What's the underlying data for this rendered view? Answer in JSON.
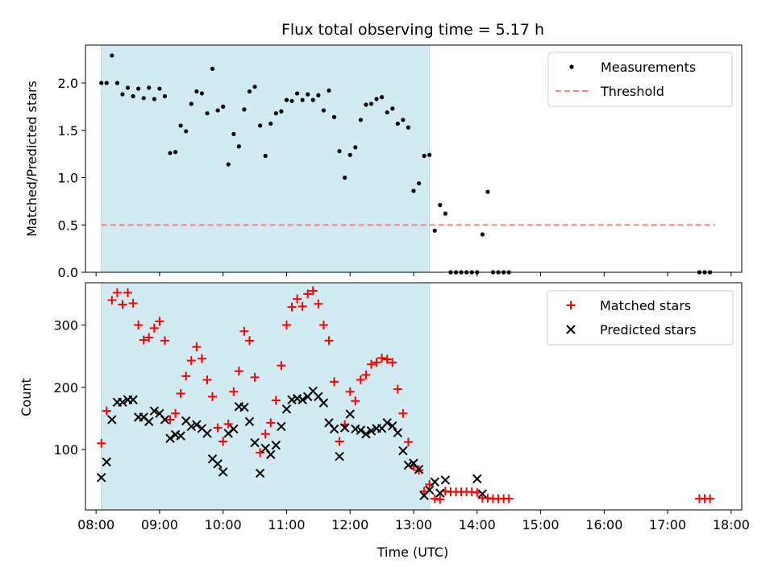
{
  "title": "Flux total observing time = 5.17 h",
  "colors": {
    "observing_span": "#add8e6",
    "measurements": "#000000",
    "threshold": "#ff7f7f",
    "matched": "#ff0000",
    "predicted": "#000000"
  },
  "chart_data": [
    {
      "type": "scatter",
      "panel": "top",
      "xlabel": "",
      "ylabel": "Matched/Predicted stars",
      "xlim": [
        "07:50",
        "18:10"
      ],
      "ylim": [
        0,
        2.4
      ],
      "yticks": [
        0.0,
        0.5,
        1.0,
        1.5,
        2.0
      ],
      "ytick_labels": [
        "0.0",
        "0.5",
        "1.0",
        "1.5",
        "2.0"
      ],
      "shaded_span": [
        "08:05",
        "13:15"
      ],
      "legend": {
        "placement": "top-right",
        "entries": [
          "Measurements",
          "Threshold"
        ]
      },
      "series": [
        {
          "name": "Measurements",
          "marker": "dot",
          "points": [
            [
              "08:05",
              2.0
            ],
            [
              "08:10",
              2.0
            ],
            [
              "08:15",
              2.29
            ],
            [
              "08:20",
              2.0
            ],
            [
              "08:25",
              1.88
            ],
            [
              "08:30",
              1.95
            ],
            [
              "08:35",
              1.86
            ],
            [
              "08:40",
              1.94
            ],
            [
              "08:45",
              1.84
            ],
            [
              "08:50",
              1.95
            ],
            [
              "08:55",
              1.83
            ],
            [
              "09:00",
              1.94
            ],
            [
              "09:05",
              1.86
            ],
            [
              "09:10",
              1.26
            ],
            [
              "09:15",
              1.27
            ],
            [
              "09:20",
              1.55
            ],
            [
              "09:25",
              1.49
            ],
            [
              "09:30",
              1.78
            ],
            [
              "09:35",
              1.91
            ],
            [
              "09:40",
              1.89
            ],
            [
              "09:45",
              1.68
            ],
            [
              "09:50",
              2.15
            ],
            [
              "09:55",
              1.71
            ],
            [
              "10:00",
              1.75
            ],
            [
              "10:05",
              1.14
            ],
            [
              "10:10",
              1.46
            ],
            [
              "10:15",
              1.33
            ],
            [
              "10:20",
              1.72
            ],
            [
              "10:25",
              1.91
            ],
            [
              "10:30",
              1.96
            ],
            [
              "10:35",
              1.55
            ],
            [
              "10:40",
              1.23
            ],
            [
              "10:45",
              1.57
            ],
            [
              "10:50",
              1.68
            ],
            [
              "10:55",
              1.7
            ],
            [
              "11:00",
              1.82
            ],
            [
              "11:05",
              1.81
            ],
            [
              "11:10",
              1.89
            ],
            [
              "11:15",
              1.82
            ],
            [
              "11:20",
              1.88
            ],
            [
              "11:25",
              1.82
            ],
            [
              "11:30",
              1.87
            ],
            [
              "11:35",
              1.71
            ],
            [
              "11:40",
              1.92
            ],
            [
              "11:45",
              1.64
            ],
            [
              "11:50",
              1.28
            ],
            [
              "11:55",
              1.0
            ],
            [
              "12:00",
              1.24
            ],
            [
              "12:05",
              1.32
            ],
            [
              "12:10",
              1.61
            ],
            [
              "12:15",
              1.77
            ],
            [
              "12:20",
              1.78
            ],
            [
              "12:25",
              1.83
            ],
            [
              "12:30",
              1.85
            ],
            [
              "12:35",
              1.69
            ],
            [
              "12:40",
              1.73
            ],
            [
              "12:45",
              1.57
            ],
            [
              "12:50",
              1.61
            ],
            [
              "12:55",
              1.53
            ],
            [
              "13:00",
              0.86
            ],
            [
              "13:05",
              0.94
            ],
            [
              "13:10",
              1.23
            ],
            [
              "13:15",
              1.24
            ],
            [
              "13:20",
              0.44
            ],
            [
              "13:25",
              0.71
            ],
            [
              "13:30",
              0.62
            ],
            [
              "13:35",
              0.0
            ],
            [
              "13:40",
              0.0
            ],
            [
              "13:45",
              0.0
            ],
            [
              "13:50",
              0.0
            ],
            [
              "13:55",
              0.0
            ],
            [
              "14:00",
              0.0
            ],
            [
              "14:05",
              0.4
            ],
            [
              "14:10",
              0.85
            ],
            [
              "14:15",
              0.0
            ],
            [
              "14:20",
              0.0
            ],
            [
              "14:25",
              0.0
            ],
            [
              "14:30",
              0.0
            ],
            [
              "17:30",
              0.0
            ],
            [
              "17:35",
              0.0
            ],
            [
              "17:40",
              0.0
            ]
          ]
        },
        {
          "name": "Threshold",
          "style": "dashed",
          "points": [
            [
              "08:05",
              0.5
            ],
            [
              "17:45",
              0.5
            ]
          ]
        }
      ]
    },
    {
      "type": "scatter",
      "panel": "bottom",
      "xlabel": "Time (UTC)",
      "ylabel": "Count",
      "xlim": [
        "07:50",
        "18:10"
      ],
      "ylim": [
        3,
        368
      ],
      "yticks": [
        100,
        200,
        300
      ],
      "ytick_labels": [
        "100",
        "200",
        "300"
      ],
      "xtick_labels": [
        "08:00",
        "09:00",
        "10:00",
        "11:00",
        "12:00",
        "13:00",
        "14:00",
        "15:00",
        "16:00",
        "17:00",
        "18:00"
      ],
      "shaded_span": [
        "08:05",
        "13:15"
      ],
      "legend": {
        "placement": "top-right",
        "entries": [
          "Matched stars",
          "Predicted stars"
        ]
      },
      "series": [
        {
          "name": "Matched stars",
          "marker": "plus",
          "points": [
            [
              "08:05",
              110
            ],
            [
              "08:10",
              162
            ],
            [
              "08:15",
              340
            ],
            [
              "08:20",
              352
            ],
            [
              "08:25",
              333
            ],
            [
              "08:30",
              352
            ],
            [
              "08:35",
              335
            ],
            [
              "08:40",
              300
            ],
            [
              "08:45",
              276
            ],
            [
              "08:50",
              280
            ],
            [
              "08:55",
              295
            ],
            [
              "09:00",
              306
            ],
            [
              "09:05",
              275
            ],
            [
              "09:10",
              148
            ],
            [
              "09:15",
              158
            ],
            [
              "09:20",
              190
            ],
            [
              "09:25",
              218
            ],
            [
              "09:30",
              243
            ],
            [
              "09:35",
              265
            ],
            [
              "09:40",
              246
            ],
            [
              "09:45",
              212
            ],
            [
              "09:50",
              185
            ],
            [
              "09:55",
              135
            ],
            [
              "10:00",
              113
            ],
            [
              "10:05",
              141
            ],
            [
              "10:10",
              193
            ],
            [
              "10:15",
              226
            ],
            [
              "10:20",
              290
            ],
            [
              "10:25",
              275
            ],
            [
              "10:30",
              216
            ],
            [
              "10:35",
              95
            ],
            [
              "10:40",
              125
            ],
            [
              "10:45",
              143
            ],
            [
              "10:50",
              179
            ],
            [
              "10:55",
              235
            ],
            [
              "11:00",
              300
            ],
            [
              "11:05",
              329
            ],
            [
              "11:10",
              342
            ],
            [
              "11:15",
              330
            ],
            [
              "11:20",
              350
            ],
            [
              "11:25",
              355
            ],
            [
              "11:30",
              334
            ],
            [
              "11:35",
              300
            ],
            [
              "11:40",
              275
            ],
            [
              "11:45",
              209
            ],
            [
              "11:50",
              113
            ],
            [
              "11:55",
              140
            ],
            [
              "12:00",
              193
            ],
            [
              "12:05",
              178
            ],
            [
              "12:10",
              212
            ],
            [
              "12:15",
              220
            ],
            [
              "12:20",
              237
            ],
            [
              "12:25",
              240
            ],
            [
              "12:30",
              247
            ],
            [
              "12:35",
              245
            ],
            [
              "12:40",
              240
            ],
            [
              "12:45",
              197
            ],
            [
              "12:50",
              158
            ],
            [
              "12:55",
              112
            ],
            [
              "13:00",
              73
            ],
            [
              "13:05",
              67
            ],
            [
              "13:10",
              33
            ],
            [
              "13:15",
              44
            ],
            [
              "13:20",
              21
            ],
            [
              "13:25",
              20
            ],
            [
              "13:30",
              33
            ],
            [
              "13:35",
              32
            ],
            [
              "13:40",
              32
            ],
            [
              "13:45",
              32
            ],
            [
              "13:50",
              32
            ],
            [
              "13:55",
              32
            ],
            [
              "14:00",
              31
            ],
            [
              "14:05",
              22
            ],
            [
              "14:10",
              22
            ],
            [
              "14:15",
              21
            ],
            [
              "14:20",
              21
            ],
            [
              "14:25",
              21
            ],
            [
              "14:30",
              21
            ],
            [
              "17:30",
              21
            ],
            [
              "17:35",
              21
            ],
            [
              "17:40",
              21
            ]
          ]
        },
        {
          "name": "Predicted stars",
          "marker": "x",
          "points": [
            [
              "08:05",
              55
            ],
            [
              "08:10",
              80
            ],
            [
              "08:15",
              148
            ],
            [
              "08:20",
              176
            ],
            [
              "08:25",
              176
            ],
            [
              "08:30",
              180
            ],
            [
              "08:35",
              180
            ],
            [
              "08:40",
              152
            ],
            [
              "08:45",
              152
            ],
            [
              "08:50",
              145
            ],
            [
              "08:55",
              162
            ],
            [
              "09:00",
              158
            ],
            [
              "09:05",
              148
            ],
            [
              "09:10",
              118
            ],
            [
              "09:15",
              124
            ],
            [
              "09:20",
              122
            ],
            [
              "09:25",
              146
            ],
            [
              "09:30",
              137
            ],
            [
              "09:35",
              140
            ],
            [
              "09:40",
              134
            ],
            [
              "09:45",
              126
            ],
            [
              "09:50",
              85
            ],
            [
              "09:55",
              77
            ],
            [
              "10:00",
              64
            ],
            [
              "10:05",
              126
            ],
            [
              "10:10",
              133
            ],
            [
              "10:15",
              169
            ],
            [
              "10:20",
              168
            ],
            [
              "10:25",
              145
            ],
            [
              "10:30",
              111
            ],
            [
              "10:35",
              62
            ],
            [
              "10:40",
              102
            ],
            [
              "10:45",
              92
            ],
            [
              "10:50",
              107
            ],
            [
              "10:55",
              137
            ],
            [
              "11:00",
              165
            ],
            [
              "11:05",
              180
            ],
            [
              "11:10",
              182
            ],
            [
              "11:15",
              180
            ],
            [
              "11:20",
              185
            ],
            [
              "11:25",
              194
            ],
            [
              "11:30",
              185
            ],
            [
              "11:35",
              175
            ],
            [
              "11:40",
              143
            ],
            [
              "11:45",
              133
            ],
            [
              "11:50",
              89
            ],
            [
              "11:55",
              135
            ],
            [
              "12:00",
              157
            ],
            [
              "12:05",
              133
            ],
            [
              "12:10",
              131
            ],
            [
              "12:15",
              125
            ],
            [
              "12:20",
              130
            ],
            [
              "12:25",
              134
            ],
            [
              "12:30",
              134
            ],
            [
              "12:35",
              143
            ],
            [
              "12:40",
              138
            ],
            [
              "12:45",
              127
            ],
            [
              "12:50",
              98
            ],
            [
              "12:55",
              75
            ],
            [
              "13:00",
              78
            ],
            [
              "13:05",
              68
            ],
            [
              "13:10",
              26
            ],
            [
              "13:15",
              35
            ],
            [
              "13:20",
              48
            ],
            [
              "13:25",
              30
            ],
            [
              "13:30",
              51
            ],
            [
              "14:00",
              53
            ],
            [
              "14:05",
              29
            ]
          ]
        }
      ]
    }
  ]
}
